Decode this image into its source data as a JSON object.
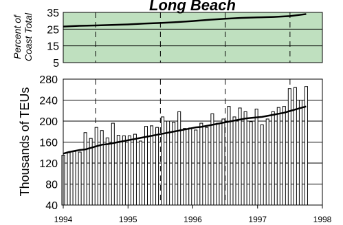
{
  "chart_data": [
    {
      "type": "line",
      "title": "Long Beach",
      "ylabel": [
        "Percent of",
        "Coast Total"
      ],
      "ylim": [
        5,
        35
      ],
      "yticks": [
        5,
        15,
        25,
        35
      ],
      "yticks_labels": [
        "5",
        "15",
        "25",
        "35"
      ],
      "grid": "horizontal",
      "background": "#bfe0bf",
      "series": [
        {
          "color": "#000000",
          "x": [
            1994.0,
            1994.25,
            1994.5,
            1994.75,
            1995.0,
            1995.25,
            1995.5,
            1995.75,
            1996.0,
            1996.25,
            1996.5,
            1996.75,
            1997.0,
            1997.25,
            1997.5,
            1997.75
          ],
          "values": [
            26.5,
            27.0,
            27.2,
            27.5,
            27.8,
            28.3,
            28.7,
            29.2,
            29.8,
            30.6,
            31.2,
            31.7,
            32.0,
            32.3,
            32.8,
            34.0
          ]
        }
      ]
    },
    {
      "type": "bar",
      "ylabel": "Thousands of TEUs",
      "ylim": [
        40,
        280
      ],
      "yticks": [
        40,
        80,
        120,
        160,
        200,
        240,
        280
      ],
      "yticks_labels": [
        "40",
        "80",
        "120",
        "160",
        "200",
        "240",
        "280"
      ],
      "xlim": [
        1994,
        1998
      ],
      "xticks_labels": [
        "1994",
        "1995",
        "1996",
        "1997",
        "1998"
      ],
      "grid": "horizontal",
      "values": [
        135,
        140,
        142,
        141,
        178,
        167,
        188,
        182,
        168,
        196,
        173,
        172,
        172,
        175,
        162,
        190,
        191,
        188,
        208,
        200,
        198,
        218,
        186,
        187,
        183,
        196,
        188,
        214,
        196,
        204,
        228,
        208,
        225,
        218,
        199,
        223,
        193,
        204,
        218,
        226,
        228,
        262,
        264,
        240,
        266
      ],
      "trend": [
        138,
        141,
        143,
        145,
        146,
        149,
        152,
        155,
        156,
        158,
        160,
        162,
        164,
        166,
        168,
        170,
        172,
        174,
        176,
        178,
        180,
        182,
        184,
        186,
        188,
        189,
        191,
        193,
        195,
        197,
        199,
        201,
        203,
        205,
        206,
        207,
        208,
        210,
        212,
        214,
        216,
        219,
        222,
        225,
        228
      ]
    }
  ]
}
